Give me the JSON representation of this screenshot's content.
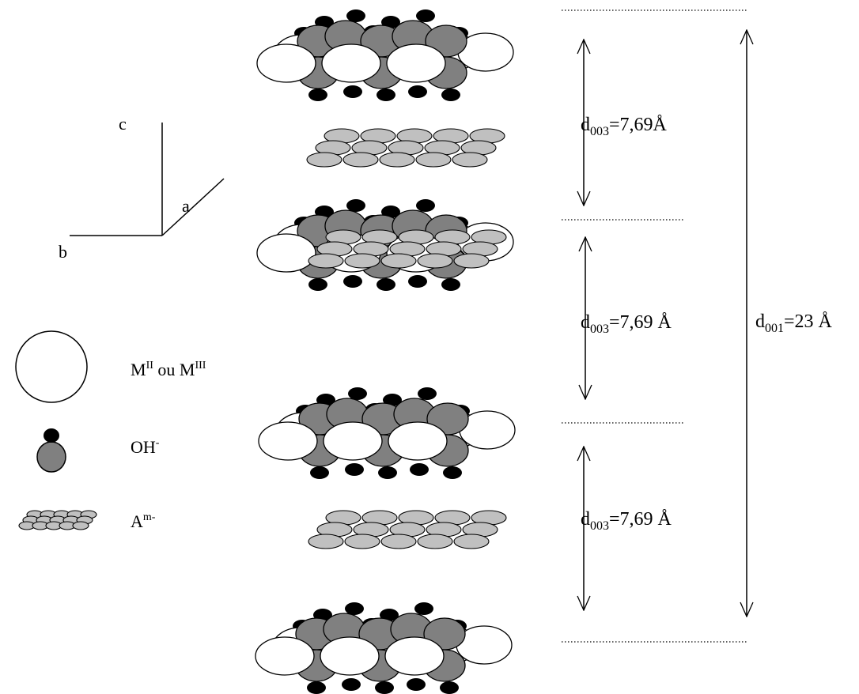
{
  "axes": {
    "c": "c",
    "a": "a",
    "b": "b"
  },
  "legend": {
    "metal": {
      "main": "M",
      "sup1": "II",
      "mid": " ou M",
      "sup2": "III"
    },
    "hydroxide": {
      "main": "OH",
      "sup": "-"
    },
    "anion": {
      "main": "A",
      "sup": "m-"
    }
  },
  "spacings": [
    {
      "pre": "d",
      "sub": "003",
      "post": "=7,69Å"
    },
    {
      "pre": "d",
      "sub": "003",
      "post": "=7,69 Å"
    },
    {
      "pre": "d",
      "sub": "003",
      "post": "=7,69 Å"
    }
  ],
  "total": {
    "pre": "d",
    "sub": "001",
    "post": "=23 Å"
  },
  "colors": {
    "metal": "#ffffff",
    "hydroxide_oxygen": "#808080",
    "hydroxide_hydrogen": "#000000",
    "anion": "#c0c0c0"
  }
}
